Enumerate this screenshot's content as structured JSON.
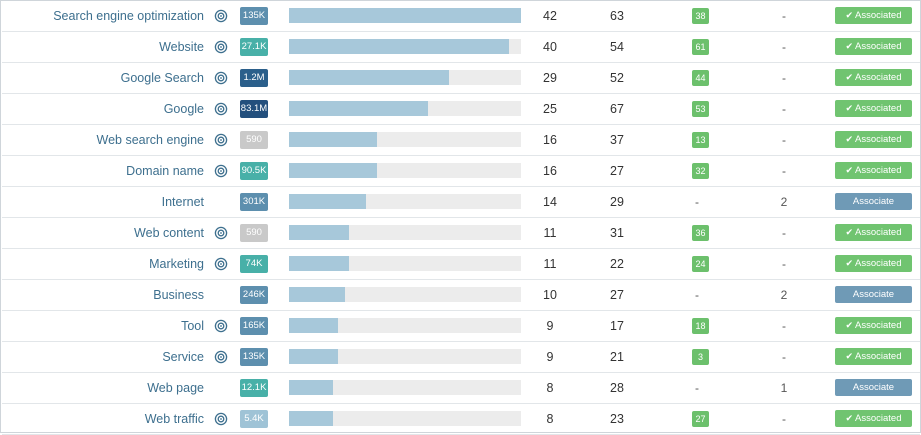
{
  "colors": {
    "keyword_text": "#3d6f8e",
    "bar_fill": "#a7c8da",
    "bar_track": "#ececec",
    "badge_green": "#6cc06c",
    "associated_green": "#70c470",
    "associate_blue": "#6f9ab6"
  },
  "icons": {
    "target": "target-icon",
    "check": "check-icon"
  },
  "rows": [
    {
      "keyword": "Search engine optimization",
      "has_target": true,
      "volume": "135K",
      "vol_color": "#5d8fae",
      "bar": 1.0,
      "col1": "42",
      "col2": "63",
      "badge": "38",
      "col5": "-",
      "status": "Associated"
    },
    {
      "keyword": "Website",
      "has_target": true,
      "volume": "27.1K",
      "vol_color": "#48b0a8",
      "bar": 0.95,
      "col1": "40",
      "col2": "54",
      "badge": "61",
      "col5": "-",
      "status": "Associated"
    },
    {
      "keyword": "Google Search",
      "has_target": true,
      "volume": "1.2M",
      "vol_color": "#2b5f8b",
      "bar": 0.69,
      "col1": "29",
      "col2": "52",
      "badge": "44",
      "col5": "-",
      "status": "Associated"
    },
    {
      "keyword": "Google",
      "has_target": true,
      "volume": "83.1M",
      "vol_color": "#234f7d",
      "bar": 0.6,
      "col1": "25",
      "col2": "67",
      "badge": "53",
      "col5": "-",
      "status": "Associated"
    },
    {
      "keyword": "Web search engine",
      "has_target": true,
      "volume": "590",
      "vol_color": "#c9c9c9",
      "bar": 0.38,
      "col1": "16",
      "col2": "37",
      "badge": "13",
      "col5": "-",
      "status": "Associated"
    },
    {
      "keyword": "Domain name",
      "has_target": true,
      "volume": "90.5K",
      "vol_color": "#48b0a8",
      "bar": 0.38,
      "col1": "16",
      "col2": "27",
      "badge": "32",
      "col5": "-",
      "status": "Associated"
    },
    {
      "keyword": "Internet",
      "has_target": false,
      "volume": "301K",
      "vol_color": "#5d8fae",
      "bar": 0.33,
      "col1": "14",
      "col2": "29",
      "badge": "-",
      "col5": "2",
      "status": "Associate"
    },
    {
      "keyword": "Web content",
      "has_target": true,
      "volume": "590",
      "vol_color": "#c9c9c9",
      "bar": 0.26,
      "col1": "11",
      "col2": "31",
      "badge": "36",
      "col5": "-",
      "status": "Associated"
    },
    {
      "keyword": "Marketing",
      "has_target": true,
      "volume": "74K",
      "vol_color": "#48b0a8",
      "bar": 0.26,
      "col1": "11",
      "col2": "22",
      "badge": "24",
      "col5": "-",
      "status": "Associated"
    },
    {
      "keyword": "Business",
      "has_target": false,
      "volume": "246K",
      "vol_color": "#5d8fae",
      "bar": 0.24,
      "col1": "10",
      "col2": "27",
      "badge": "-",
      "col5": "2",
      "status": "Associate"
    },
    {
      "keyword": "Tool",
      "has_target": true,
      "volume": "165K",
      "vol_color": "#5d8fae",
      "bar": 0.21,
      "col1": "9",
      "col2": "17",
      "badge": "18",
      "col5": "-",
      "status": "Associated"
    },
    {
      "keyword": "Service",
      "has_target": true,
      "volume": "135K",
      "vol_color": "#5d8fae",
      "bar": 0.21,
      "col1": "9",
      "col2": "21",
      "badge": "3",
      "col5": "-",
      "status": "Associated"
    },
    {
      "keyword": "Web page",
      "has_target": false,
      "volume": "12.1K",
      "vol_color": "#48b0a8",
      "bar": 0.19,
      "col1": "8",
      "col2": "28",
      "badge": "-",
      "col5": "1",
      "status": "Associate"
    },
    {
      "keyword": "Web traffic",
      "has_target": true,
      "volume": "5.4K",
      "vol_color": "#9fc3d6",
      "bar": 0.19,
      "col1": "8",
      "col2": "23",
      "badge": "27",
      "col5": "-",
      "status": "Associated"
    }
  ]
}
